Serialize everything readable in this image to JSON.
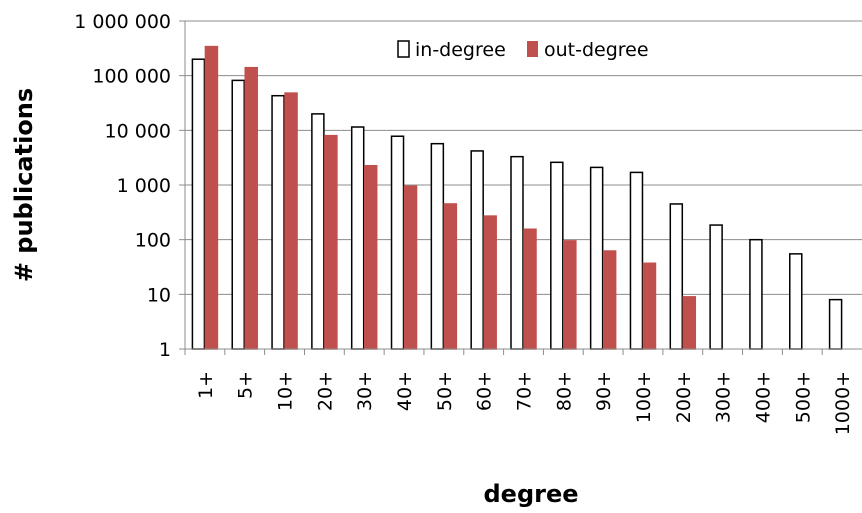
{
  "chart_data": {
    "type": "bar",
    "title": "",
    "xlabel": "degree",
    "ylabel": "# publications",
    "yscale": "log",
    "ylim": [
      1,
      1000000
    ],
    "ytick_values": [
      1,
      10,
      100,
      1000,
      10000,
      100000,
      1000000
    ],
    "ytick_labels": [
      "1",
      "10",
      "100",
      "1 000",
      "10 000",
      "100 000",
      "1 000 000"
    ],
    "grid": "horizontal",
    "legend_position": "top-right",
    "categories": [
      "1+",
      "5+",
      "10+",
      "20+",
      "30+",
      "40+",
      "50+",
      "60+",
      "70+",
      "80+",
      "90+",
      "100+",
      "200+",
      "300+",
      "400+",
      "500+",
      "1000+"
    ],
    "series": [
      {
        "name": "in-degree",
        "fill": "#ffffff",
        "stroke": "#000000",
        "values": [
          200000,
          82000,
          43000,
          20000,
          11500,
          7800,
          5700,
          4200,
          3300,
          2600,
          2100,
          1700,
          450,
          185,
          100,
          55,
          8
        ]
      },
      {
        "name": "out-degree",
        "fill": "#c0504d",
        "stroke": "#c0504d",
        "values": [
          340000,
          140000,
          48000,
          8000,
          2250,
          950,
          450,
          270,
          155,
          95,
          62,
          37,
          9,
          null,
          null,
          null,
          null
        ]
      }
    ]
  }
}
